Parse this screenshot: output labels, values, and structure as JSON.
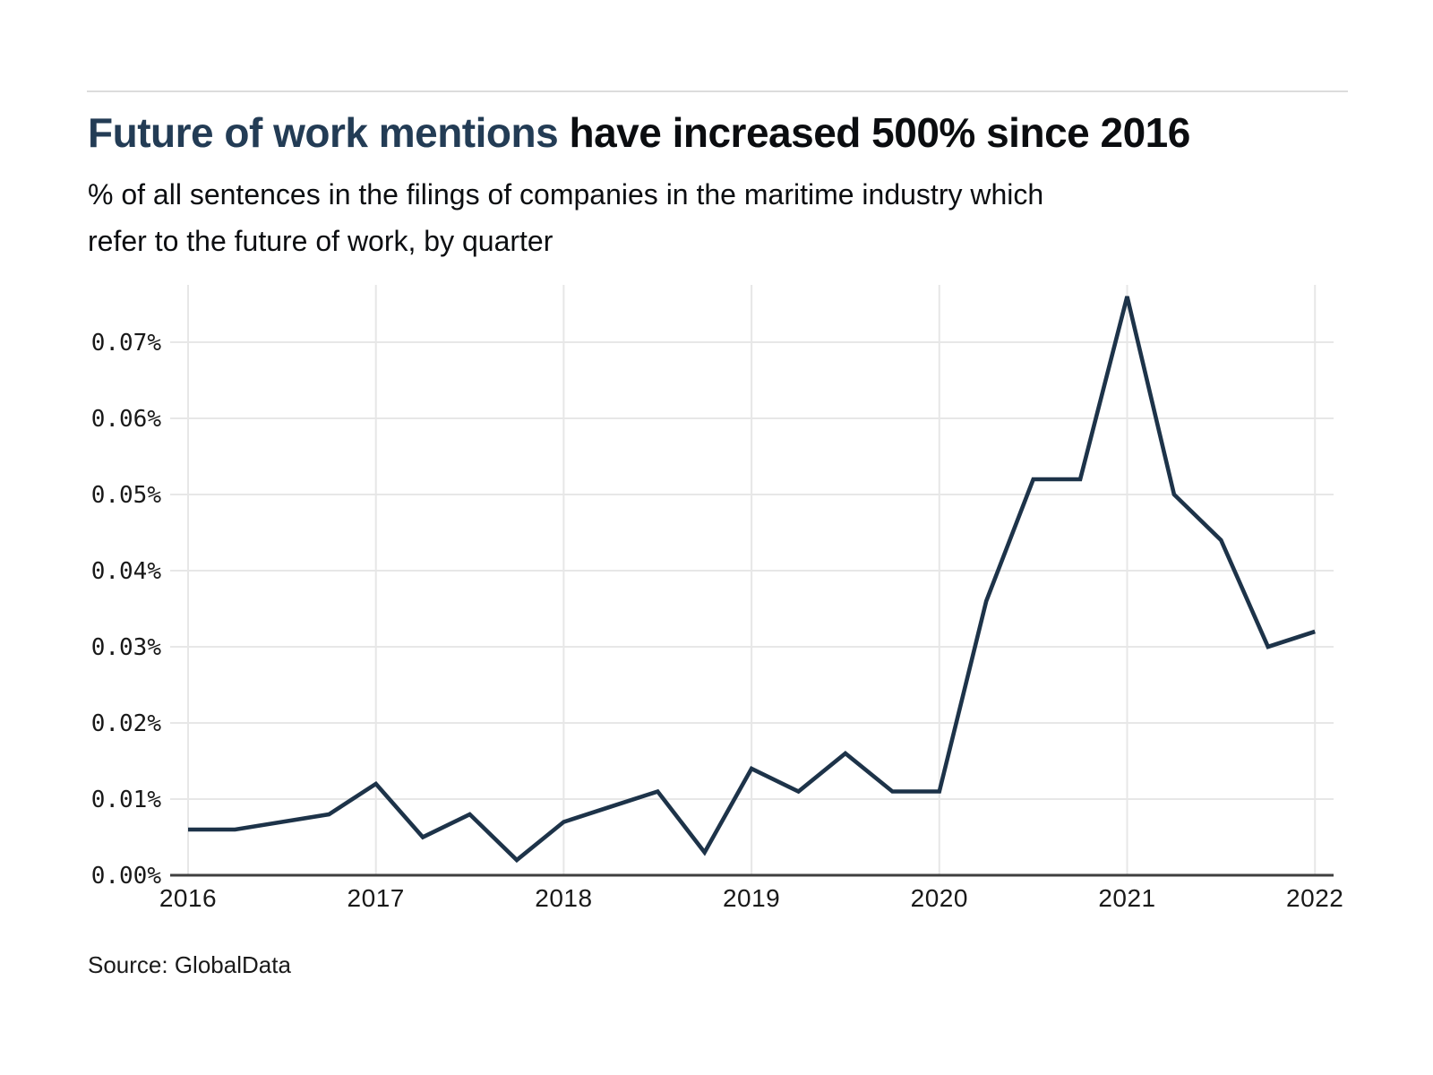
{
  "header": {
    "title_highlight": "Future of work mentions",
    "title_rest": " have increased 500% since 2016",
    "subtitle_line1": "% of all sentences in the filings of companies in the maritime industry which",
    "subtitle_line2": "refer to the future of work, by quarter"
  },
  "footer": {
    "source": "Source: GlobalData"
  },
  "colors": {
    "title_accent": "#233c55",
    "title_rest": "#0b0d10",
    "line": "#1d3349",
    "grid": "#e7e7e7",
    "axis": "#3f3f3f",
    "divider": "#dcdcdc",
    "tick_text": "#191919"
  },
  "chart_data": {
    "type": "line",
    "title": "Future of work mentions have increased 500% since 2016",
    "subtitle": "% of all sentences in the filings of companies in the maritime industry which refer to the future of work, by quarter",
    "source": "Source: GlobalData",
    "categories": [
      "Q1 2016",
      "Q2 2016",
      "Q3 2016",
      "Q4 2016",
      "Q1 2017",
      "Q2 2017",
      "Q3 2017",
      "Q4 2017",
      "Q1 2018",
      "Q2 2018",
      "Q3 2018",
      "Q4 2018",
      "Q1 2019",
      "Q2 2019",
      "Q3 2019",
      "Q4 2019",
      "Q1 2020",
      "Q2 2020",
      "Q3 2020",
      "Q4 2020",
      "Q1 2021",
      "Q2 2021",
      "Q3 2021",
      "Q4 2021",
      "Q1 2022"
    ],
    "values": [
      0.006,
      0.006,
      0.007,
      0.008,
      0.012,
      0.005,
      0.008,
      0.002,
      0.007,
      0.009,
      0.011,
      0.003,
      0.014,
      0.011,
      0.016,
      0.011,
      0.011,
      0.036,
      0.052,
      0.052,
      0.076,
      0.05,
      0.044,
      0.03,
      0.032
    ],
    "unit": "%",
    "x_tick_labels": [
      "2016",
      "2017",
      "2018",
      "2019",
      "2020",
      "2021",
      "2022"
    ],
    "y_ticks": [
      0,
      0.01,
      0.02,
      0.03,
      0.04,
      0.05,
      0.06,
      0.07
    ],
    "y_tick_labels": [
      "0.00%",
      "0.01%",
      "0.02%",
      "0.03%",
      "0.04%",
      "0.05%",
      "0.06%",
      "0.07%"
    ],
    "ylim": [
      0,
      0.0775
    ],
    "xlabel": "",
    "ylabel": "",
    "grid": true,
    "legend": false
  }
}
